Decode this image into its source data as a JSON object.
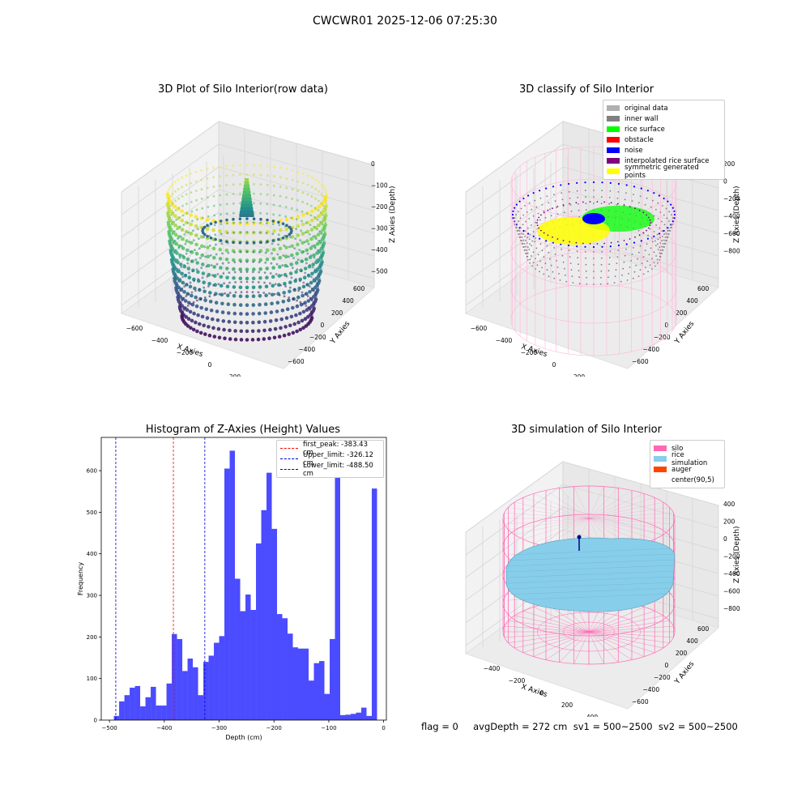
{
  "suptitle": "CWCWR01 2025-12-06 07:25:30",
  "footer": "flag = 0     avgDepth = 272 cm  sv1 = 500~2500  sv2 = 500~2500",
  "colors": {
    "histogram": "#4b4bff",
    "first_peak": "#ff0000",
    "limits": "#0000cc",
    "silo": "#ff69b4",
    "rice": "#87ceeb",
    "auger": "#ff4500"
  },
  "chart_data": [
    {
      "type": "scatter",
      "plot_kind": "3d-scatter",
      "title": "3D Plot of Silo Interior(row data)",
      "xlabel": "X Axies",
      "ylabel": "Y Axies",
      "zlabel": "Z Axies (Depth)",
      "x_ticks": [
        "−600",
        "−400",
        "−200",
        "0",
        "200",
        "400",
        "600"
      ],
      "y_ticks": [
        "−600",
        "−400",
        "−200",
        "0",
        "200",
        "400",
        "600"
      ],
      "z_ticks": [
        "0",
        "−100",
        "−200",
        "−300",
        "−400",
        "−500"
      ],
      "colormap": "viridis",
      "zlim": [
        -520,
        0
      ],
      "grid": true
    },
    {
      "type": "scatter",
      "plot_kind": "3d-scatter",
      "title": "3D classify of Silo Interior",
      "xlabel": "X Axies",
      "ylabel": "Y Axies",
      "zlabel": "Z Axies (Depth)",
      "x_ticks": [
        "−600",
        "−400",
        "−200",
        "0",
        "200",
        "400",
        "600"
      ],
      "y_ticks": [
        "−600",
        "−400",
        "−200",
        "0",
        "200",
        "400",
        "600"
      ],
      "z_ticks": [
        "200",
        "0",
        "−200",
        "−400",
        "−600",
        "−800"
      ],
      "legend": [
        {
          "label": "original data",
          "color": "#b0b0b0"
        },
        {
          "label": "inner wall",
          "color": "#808080"
        },
        {
          "label": "rice surface",
          "color": "#00ff00"
        },
        {
          "label": "obstacle",
          "color": "#ff0000"
        },
        {
          "label": "noise",
          "color": "#0000ff"
        },
        {
          "label": "interpolated rice surface",
          "color": "#800080"
        },
        {
          "label": "symmetric generated points",
          "color": "#ffff00"
        }
      ],
      "legend_position": "top-right",
      "grid": true
    },
    {
      "type": "bar",
      "plot_kind": "histogram",
      "title": "Histogram of Z-Axies (Height) Values",
      "xlabel": "Depth (cm)",
      "ylabel": "Frequency",
      "xlim": [
        -515,
        5
      ],
      "ylim": [
        0,
        680
      ],
      "x_ticks": [
        -500,
        -400,
        -300,
        -200,
        -100,
        0
      ],
      "x_tick_labels": [
        "−500",
        "−400",
        "−300",
        "−200",
        "−100",
        "0"
      ],
      "y_ticks": [
        0,
        100,
        200,
        300,
        400,
        500,
        600
      ],
      "bin_start": -492,
      "bin_width": 9.6,
      "values": [
        10,
        45,
        60,
        78,
        82,
        33,
        55,
        80,
        35,
        35,
        88,
        207,
        195,
        118,
        148,
        127,
        60,
        140,
        155,
        186,
        202,
        605,
        648,
        340,
        262,
        302,
        265,
        425,
        505,
        595,
        460,
        255,
        245,
        208,
        175,
        172,
        172,
        95,
        137,
        142,
        63,
        195,
        590,
        12,
        13,
        15,
        18,
        30,
        10,
        557
      ],
      "lines": [
        {
          "name": "first_peak: -383.43 cm",
          "x": -383.43,
          "color": "#ff0000"
        },
        {
          "name": "Upper_limit: -326.12 cm",
          "x": -326.12,
          "color": "#0000cc"
        },
        {
          "name": "Lower_limit: -488.50 cm",
          "x": -488.5,
          "color": "#0000cc"
        }
      ],
      "legend_position": "top-right",
      "grid": false
    },
    {
      "type": "area",
      "plot_kind": "3d-surface",
      "title": "3D simulation of Silo Interior",
      "xlabel": "X Axies",
      "ylabel": "Y Axies",
      "zlabel": "Z Axies (Depth)",
      "x_ticks": [
        "−400",
        "−200",
        "0",
        "200",
        "400",
        "600"
      ],
      "y_ticks": [
        "−600",
        "−400",
        "−200",
        "0",
        "200",
        "400",
        "600"
      ],
      "z_ticks": [
        "400",
        "200",
        "0",
        "−200",
        "−400",
        "−600",
        "−800"
      ],
      "legend": [
        {
          "label": "silo",
          "color": "#ff69b4"
        },
        {
          "label": "rice simulation",
          "color": "#87ceeb"
        },
        {
          "label": "auger",
          "color": "#ff4500"
        },
        {
          "label": "center(90,5)",
          "color": ""
        }
      ],
      "legend_position": "top-right",
      "grid": true
    }
  ]
}
